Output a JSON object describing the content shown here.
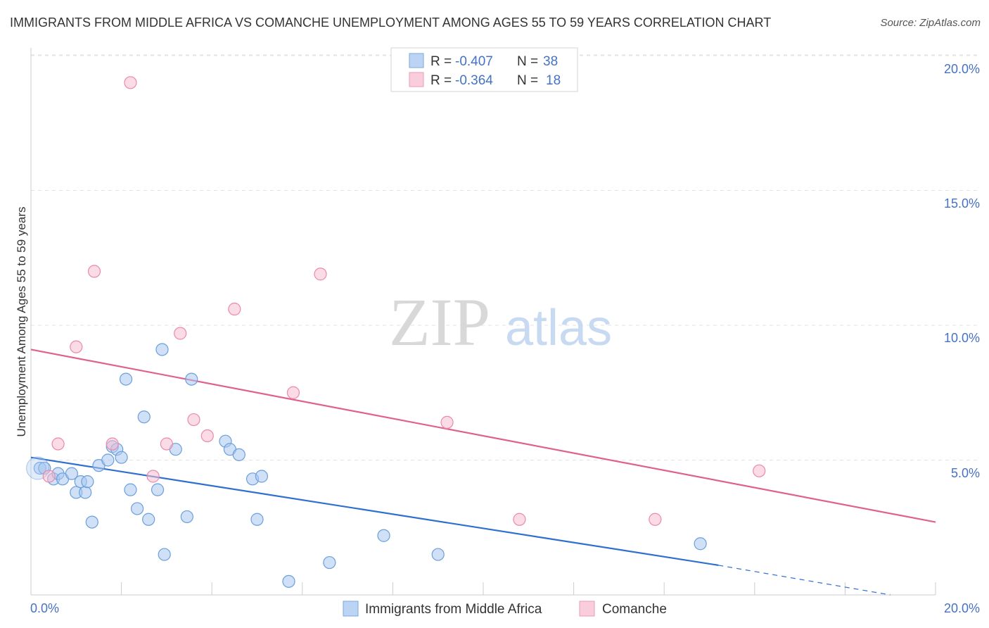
{
  "chart_data": {
    "type": "scatter",
    "title": "IMMIGRANTS FROM MIDDLE AFRICA VS COMANCHE UNEMPLOYMENT AMONG AGES 55 TO 59 YEARS CORRELATION CHART",
    "source": "Source: ZipAtlas.com",
    "xlabel": "",
    "ylabel": "Unemployment Among Ages 55 to 59 years",
    "xlim": [
      0,
      20
    ],
    "ylim": [
      0,
      20.5
    ],
    "x_tick_labels": [
      "0.0%",
      "20.0%"
    ],
    "y_ticks": [
      5,
      10,
      15,
      20
    ],
    "y_tick_labels": [
      "5.0%",
      "10.0%",
      "15.0%",
      "20.0%"
    ],
    "watermark": {
      "zip": "ZIP",
      "atlas": "atlas"
    },
    "colors": {
      "blue_fill": "#a9c8f0",
      "blue_stroke": "#6a9fdc",
      "blue_line": "#2f6fcf",
      "pink_fill": "#f7bdd0",
      "pink_stroke": "#e98aab",
      "pink_line": "#e0608e",
      "grid": "#e3e3e3",
      "axis_label": "#4472c4"
    },
    "legend": {
      "entries": [
        {
          "r_label": "R =",
          "r_value": "-0.407",
          "n_label": "N =",
          "n_value": "38"
        },
        {
          "r_label": "R =",
          "r_value": "-0.364",
          "n_label": "N =",
          "n_value": "18"
        }
      ]
    },
    "series": [
      {
        "name": "Immigrants from Middle Africa",
        "color": "blue",
        "points": [
          [
            0.2,
            4.7
          ],
          [
            0.3,
            4.7
          ],
          [
            0.5,
            4.3
          ],
          [
            0.6,
            4.5
          ],
          [
            0.7,
            4.3
          ],
          [
            0.9,
            4.5
          ],
          [
            1.0,
            3.8
          ],
          [
            1.1,
            4.2
          ],
          [
            1.2,
            3.8
          ],
          [
            1.25,
            4.2
          ],
          [
            1.35,
            2.7
          ],
          [
            1.5,
            4.8
          ],
          [
            1.7,
            5.0
          ],
          [
            1.8,
            5.5
          ],
          [
            1.9,
            5.4
          ],
          [
            2.0,
            5.1
          ],
          [
            2.1,
            8.0
          ],
          [
            2.2,
            3.9
          ],
          [
            2.35,
            3.2
          ],
          [
            2.5,
            6.6
          ],
          [
            2.6,
            2.8
          ],
          [
            2.8,
            3.9
          ],
          [
            2.9,
            9.1
          ],
          [
            2.95,
            1.5
          ],
          [
            3.2,
            5.4
          ],
          [
            3.45,
            2.9
          ],
          [
            3.55,
            8.0
          ],
          [
            4.3,
            5.7
          ],
          [
            4.4,
            5.4
          ],
          [
            4.6,
            5.2
          ],
          [
            4.9,
            4.3
          ],
          [
            5.0,
            2.8
          ],
          [
            5.1,
            4.4
          ],
          [
            5.7,
            0.5
          ],
          [
            6.6,
            1.2
          ],
          [
            7.8,
            2.2
          ],
          [
            9.0,
            1.5
          ],
          [
            14.8,
            1.9
          ]
        ],
        "trend": {
          "x_start": 0,
          "y_start": 5.1,
          "x_solid_end": 15.2,
          "y_solid_end": 1.1,
          "x_end": 19.0,
          "y_end": 0.0
        }
      },
      {
        "name": "Comanche",
        "color": "pink",
        "points": [
          [
            0.4,
            4.4
          ],
          [
            0.6,
            5.6
          ],
          [
            1.0,
            9.2
          ],
          [
            1.4,
            12.0
          ],
          [
            1.8,
            5.6
          ],
          [
            2.2,
            19.0
          ],
          [
            2.7,
            4.4
          ],
          [
            3.0,
            5.6
          ],
          [
            3.3,
            9.7
          ],
          [
            3.6,
            6.5
          ],
          [
            3.9,
            5.9
          ],
          [
            4.5,
            10.6
          ],
          [
            5.8,
            7.5
          ],
          [
            6.4,
            11.9
          ],
          [
            9.2,
            6.4
          ],
          [
            10.8,
            2.8
          ],
          [
            13.8,
            2.8
          ],
          [
            16.1,
            4.6
          ]
        ],
        "trend": {
          "x_start": 0,
          "y_start": 9.1,
          "x_end": 20.0,
          "y_end": 2.7
        }
      }
    ]
  }
}
